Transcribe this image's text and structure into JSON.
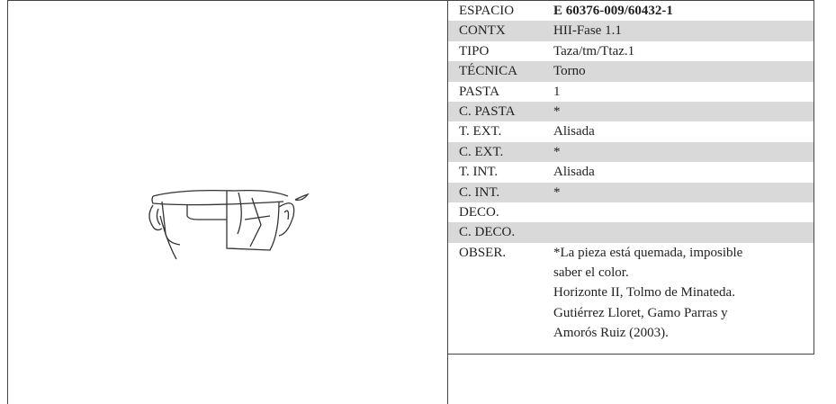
{
  "rows": [
    {
      "label": "ESPACIO",
      "value": "E 60376-009/60432-1"
    },
    {
      "label": "CONTX",
      "value": "HII-Fase 1.1"
    },
    {
      "label": "TIPO",
      "value": "Taza/tm/Ttaz.1"
    },
    {
      "label": "TÉCNICA",
      "value": "Torno"
    },
    {
      "label": "PASTA",
      "value": "1"
    },
    {
      "label": "C. PASTA",
      "value": "*"
    },
    {
      "label": "T. EXT.",
      "value": "Alisada"
    },
    {
      "label": "C. EXT.",
      "value": "*"
    },
    {
      "label": "T. INT.",
      "value": "Alisada"
    },
    {
      "label": "C. INT.",
      "value": "*"
    },
    {
      "label": "DECO."
    },
    {
      "label": "C. DECO."
    }
  ],
  "observations": {
    "label": "OBSER.",
    "lines": [
      "*La pieza está quemada, imposible",
      "saber el color.",
      "Horizonte II, Tolmo de Minateda.",
      "Gutiérrez Lloret, Gamo Parras y",
      "Amorós Ruiz (2003)."
    ]
  }
}
